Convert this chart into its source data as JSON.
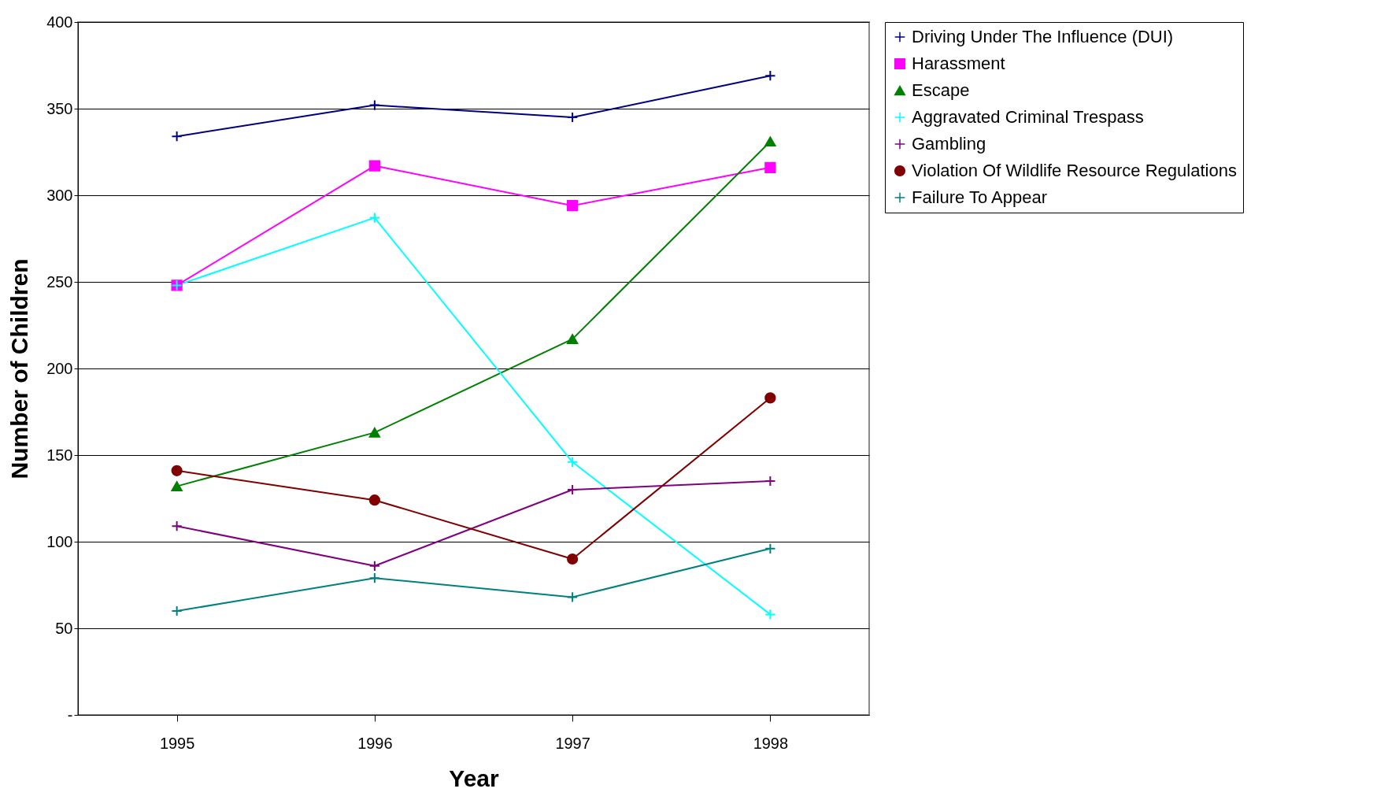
{
  "chart_data": {
    "type": "line",
    "xlabel": "Year",
    "ylabel": "Number of Children",
    "categories": [
      "1995",
      "1996",
      "1997",
      "1998"
    ],
    "ylim": [
      0,
      400
    ],
    "yticks": [
      {
        "value": 0,
        "label": "-"
      },
      50,
      100,
      150,
      200,
      250,
      300,
      350,
      400
    ],
    "grid": "y",
    "legend": "right",
    "line_style": "solid",
    "series": [
      {
        "name": "Driving Under The Influence (DUI)",
        "color": "#000080",
        "marker": "cross",
        "values": [
          334,
          352,
          345,
          369
        ]
      },
      {
        "name": "Harassment",
        "color": "#ff00ff",
        "marker": "square",
        "values": [
          248,
          317,
          294,
          316
        ]
      },
      {
        "name": "Escape",
        "color": "#008000",
        "marker": "triangle",
        "values": [
          132,
          163,
          217,
          331
        ]
      },
      {
        "name": "Aggravated Criminal Trespass",
        "color": "#00ffff",
        "marker": "cross",
        "values": [
          248,
          287,
          146,
          58
        ]
      },
      {
        "name": "Gambling",
        "color": "#800080",
        "marker": "cross",
        "values": [
          109,
          86,
          130,
          135
        ]
      },
      {
        "name": "Violation Of Wildlife Resource Regulations",
        "color": "#800000",
        "marker": "circle",
        "values": [
          141,
          124,
          90,
          183
        ]
      },
      {
        "name": "Failure To Appear",
        "color": "#008080",
        "marker": "cross",
        "values": [
          60,
          79,
          68,
          96
        ]
      }
    ]
  }
}
